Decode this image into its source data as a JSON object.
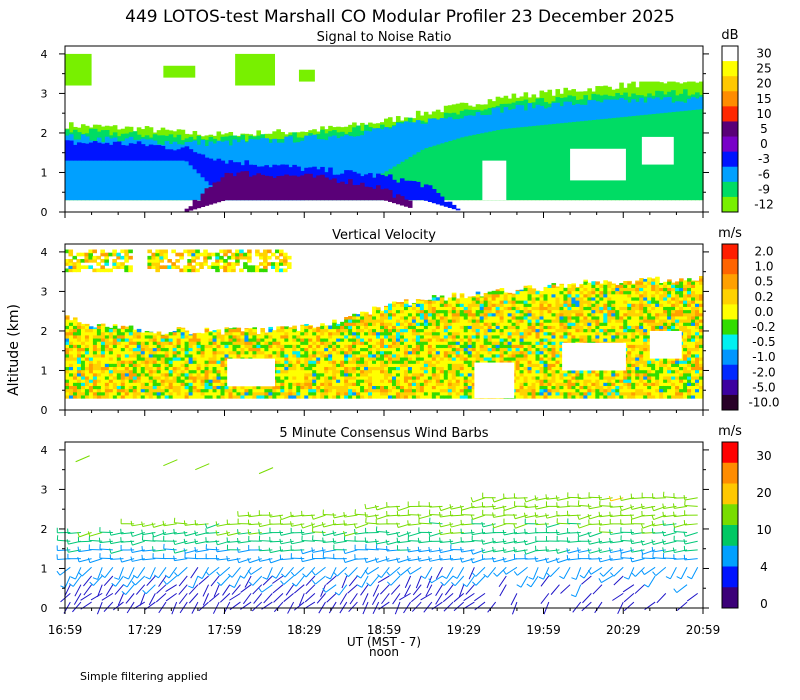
{
  "title": "449 LOTOS-test Marshall CO Modular Profiler 23 December 2025",
  "ylabel": "Altitude (km)",
  "xaxis": {
    "label": "UT  (MST - 7)",
    "noon_label": "noon",
    "ticks": [
      "16:59",
      "17:29",
      "17:59",
      "18:29",
      "18:59",
      "19:29",
      "19:59",
      "20:29",
      "20:59"
    ],
    "range_hours": [
      16.9833,
      20.9833
    ],
    "noon_at_hours": 19.0
  },
  "footnote": "Simple filtering applied",
  "chart_data": [
    {
      "type": "heatmap",
      "title": "Signal to Noise Ratio",
      "unit": "dB",
      "ylim": [
        0,
        4.2
      ],
      "yticks": [
        "0",
        "1",
        "2",
        "3",
        "4"
      ],
      "colorbar": {
        "labels": [
          "30",
          "25",
          "20",
          "15",
          "10",
          "5",
          "0",
          "-3",
          "-6",
          "-9",
          "-12"
        ],
        "colors": [
          "#ffffff",
          "#ffff00",
          "#ffc800",
          "#ff8c00",
          "#ff2800",
          "#5a0078",
          "#7800c8",
          "#0014ff",
          "#00a0ff",
          "#00dc64",
          "#78f000"
        ]
      },
      "layers": [
        {
          "label": "-9",
          "top_km": [
            2.2,
            2.15,
            2.1,
            2.0,
            1.95,
            2.0,
            2.05,
            2.15,
            2.3,
            2.5,
            2.7,
            2.9,
            3.0,
            3.1,
            3.2,
            3.3,
            3.3
          ],
          "bottom_km": [
            0.3,
            0.3,
            0.3,
            0.3,
            0.3,
            0.3,
            0.3,
            0.3,
            0.3,
            0.3,
            0.3,
            0.3,
            0.3,
            0.3,
            0.3,
            0.3,
            0.3
          ]
        },
        {
          "label": "-6",
          "top_km": [
            2.05,
            2.0,
            1.95,
            1.9,
            1.85,
            1.9,
            1.95,
            2.05,
            2.2,
            2.35,
            2.5,
            2.7,
            2.8,
            2.9,
            2.95,
            3.0,
            3.05
          ],
          "bottom_km": [
            0.3,
            0.3,
            0.3,
            0.3,
            0.3,
            0.3,
            0.3,
            0.3,
            0.3,
            0.3,
            0.3,
            0.3,
            0.3,
            0.3,
            0.3,
            0.3,
            0.3
          ]
        },
        {
          "label": "-3",
          "top_km": [
            1.9,
            1.85,
            1.8,
            1.75,
            1.75,
            1.8,
            1.85,
            1.95,
            2.1,
            2.3,
            2.45,
            2.6,
            2.7,
            2.75,
            2.8,
            2.85,
            2.85
          ],
          "bottom_km": [
            0.3,
            0.3,
            0.3,
            0.3,
            0.3,
            0.3,
            0.3,
            0.5,
            1.0,
            1.6,
            1.9,
            2.1,
            2.2,
            2.3,
            2.4,
            2.5,
            2.6
          ]
        },
        {
          "label": "0",
          "top_km": [
            1.75,
            1.75,
            1.7,
            1.6,
            1.3,
            1.2,
            1.1,
            1.0,
            0.9,
            0.7,
            0,
            0,
            0,
            0,
            0,
            0,
            0
          ],
          "bottom_km": [
            1.3,
            1.3,
            1.3,
            1.3,
            0.3,
            0.3,
            0.3,
            0.3,
            0.3,
            0.3,
            0,
            0,
            0,
            0,
            0,
            0,
            0
          ]
        },
        {
          "label": "5",
          "top_km": [
            0,
            0,
            0,
            0,
            1.0,
            0.95,
            0.9,
            0.8,
            0.6,
            0,
            0,
            0,
            0,
            0,
            0,
            0,
            0
          ],
          "bottom_km": [
            0,
            0,
            0,
            0,
            0.3,
            0.3,
            0.3,
            0.3,
            0.3,
            0,
            0,
            0,
            0,
            0,
            0,
            0,
            0
          ]
        }
      ],
      "low_signal_gaps": [
        {
          "from_hours": 16.98,
          "to_hours": 17.9,
          "bottom_km": 2.45,
          "top_km": 4.2
        },
        {
          "from_hours": 17.9,
          "to_hours": 18.9,
          "bottom_km": 2.3,
          "top_km": 4.2
        },
        {
          "from_hours": 18.9,
          "to_hours": 20.98,
          "bottom_km": 3.3,
          "top_km": 4.2
        },
        {
          "from_hours": 19.6,
          "to_hours": 19.75,
          "bottom_km": 0.3,
          "top_km": 1.3
        },
        {
          "from_hours": 20.15,
          "to_hours": 20.5,
          "bottom_km": 0.8,
          "top_km": 1.6
        },
        {
          "from_hours": 20.6,
          "to_hours": 20.8,
          "bottom_km": 1.2,
          "top_km": 1.9
        }
      ]
    },
    {
      "type": "heatmap",
      "title": "Vertical Velocity",
      "unit": "m/s",
      "ylim": [
        0,
        4.2
      ],
      "yticks": [
        "0",
        "1",
        "2",
        "3",
        "4"
      ],
      "colorbar": {
        "labels": [
          "2.0",
          "1.0",
          "0.5",
          "0.2",
          "0.0",
          "-0.2",
          "-0.5",
          "-1.0",
          "-2.0",
          "-5.0",
          "-10.0"
        ],
        "colors": [
          "#ff1e00",
          "#ff6400",
          "#ffa000",
          "#ffd200",
          "#ffff00",
          "#32dc00",
          "#00f0f0",
          "#0096ff",
          "#0028ff",
          "#3c00a0",
          "#280028"
        ]
      },
      "coverage": {
        "top_km": [
          2.3,
          2.1,
          2.0,
          2.0,
          2.0,
          2.0,
          2.1,
          2.3,
          2.6,
          2.8,
          2.9,
          3.0,
          3.1,
          3.2,
          3.25,
          3.3,
          3.3
        ],
        "bottom_km": 0.3
      },
      "upper_patches": [
        {
          "from_hours": 16.98,
          "to_hours": 17.4,
          "bottom_km": 3.5,
          "top_km": 4.0
        },
        {
          "from_hours": 17.5,
          "to_hours": 18.4,
          "bottom_km": 3.5,
          "top_km": 4.0
        }
      ],
      "typical_values": {
        "below_2km": "0.0 to 0.5",
        "above_2km": "0.2 to 1.0"
      }
    },
    {
      "type": "scatter",
      "title": "5 Minute Consensus Wind Barbs",
      "unit": "m/s",
      "ylim": [
        0,
        4.2
      ],
      "yticks": [
        "0",
        "1",
        "2",
        "3",
        "4"
      ],
      "colorbar": {
        "labels": [
          "30",
          "20",
          "10",
          "4",
          "0"
        ],
        "colors": [
          "#ff0000",
          "#ff8c00",
          "#ffc800",
          "#78dc00",
          "#00c864",
          "#00a0ff",
          "#0014ff",
          "#3c0078"
        ]
      },
      "speed_profile": {
        "heights_km": [
          0.3,
          0.8,
          1.3,
          1.8,
          2.3,
          2.8,
          3.3,
          3.8
        ],
        "speed_ms": [
          2,
          3,
          5,
          8,
          11,
          13,
          14,
          12
        ]
      }
    }
  ]
}
